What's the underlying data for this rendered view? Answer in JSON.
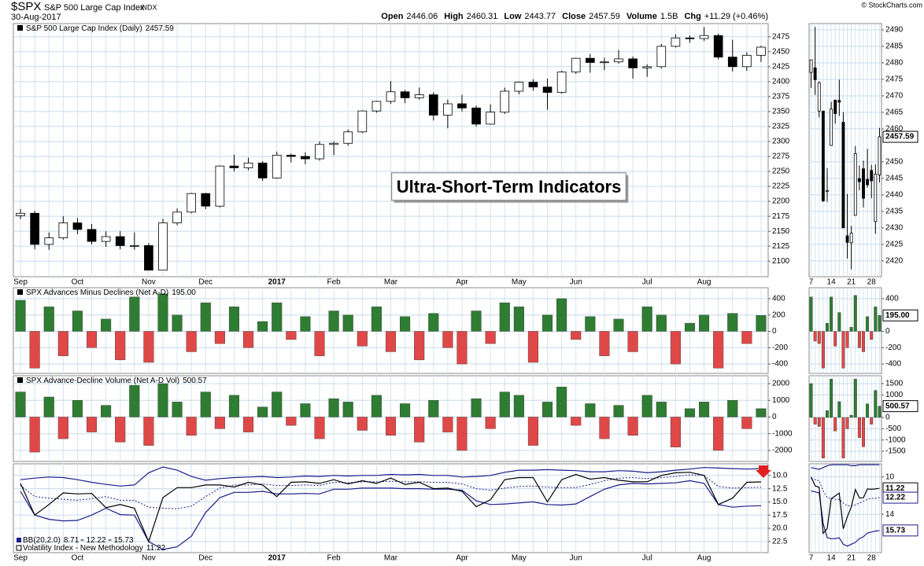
{
  "header": {
    "symbol": "$SPX",
    "name": "S&P 500 Large Cap Index",
    "exchange": "INDX",
    "date": "30-Aug-2017",
    "quote": [
      {
        "label": "Open",
        "value": "2446.06"
      },
      {
        "label": "High",
        "value": "2460.31"
      },
      {
        "label": "Low",
        "value": "2443.77"
      },
      {
        "label": "Close",
        "value": "2457.59"
      },
      {
        "label": "Volume",
        "value": "1.5B"
      },
      {
        "label": "Chg",
        "value": "+11.29 (+0.46%)"
      }
    ],
    "credit": "© StockCharts.com"
  },
  "chart_data": [
    {
      "type": "candlestick",
      "name": "S&P 500 Large Cap Index (Daily)",
      "annotation": "Ultra-Short-Term Indicators",
      "up_color": "#ffffff",
      "down_color": "#000000",
      "grid": true,
      "categories": [
        "Sep",
        null,
        null,
        null,
        "Oct",
        null,
        null,
        null,
        null,
        "Nov",
        null,
        null,
        null,
        "Dec",
        null,
        null,
        null,
        null,
        "2017",
        null,
        null,
        null,
        "Feb",
        null,
        null,
        null,
        "Mar",
        null,
        null,
        null,
        null,
        "Apr",
        null,
        null,
        null,
        "May",
        null,
        null,
        null,
        "Jun",
        null,
        null,
        null,
        null,
        "Jul",
        null,
        null,
        null,
        "Aug",
        null,
        null,
        null,
        null
      ],
      "open": [
        2176,
        2180,
        2128,
        2139,
        2164,
        2153,
        2133,
        2141,
        2126,
        2126,
        2085,
        2164,
        2182,
        2213,
        2192,
        2259,
        2256,
        2264,
        2239,
        2277,
        2275,
        2271,
        2295,
        2297,
        2316,
        2351,
        2367,
        2383,
        2373,
        2378,
        2344,
        2363,
        2356,
        2329,
        2349,
        2384,
        2399,
        2391,
        2382,
        2416,
        2439,
        2432,
        2433,
        2438,
        2423,
        2425,
        2459,
        2473,
        2472,
        2477,
        2441,
        2425,
        2444
      ],
      "high": [
        2187,
        2184,
        2148,
        2175,
        2172,
        2162,
        2150,
        2150,
        2148,
        2130,
        2171,
        2188,
        2214,
        2214,
        2260,
        2278,
        2273,
        2267,
        2283,
        2280,
        2282,
        2300,
        2300,
        2320,
        2352,
        2368,
        2401,
        2386,
        2390,
        2382,
        2370,
        2378,
        2360,
        2362,
        2390,
        2400,
        2404,
        2405,
        2418,
        2440,
        2446,
        2440,
        2453,
        2442,
        2429,
        2463,
        2479,
        2477,
        2491,
        2480,
        2470,
        2449,
        2460
      ],
      "low": [
        2170,
        2120,
        2119,
        2136,
        2145,
        2128,
        2124,
        2120,
        2119,
        2084,
        2085,
        2160,
        2180,
        2187,
        2190,
        2250,
        2252,
        2234,
        2238,
        2265,
        2262,
        2268,
        2277,
        2293,
        2314,
        2348,
        2363,
        2364,
        2370,
        2335,
        2322,
        2350,
        2325,
        2328,
        2346,
        2379,
        2385,
        2353,
        2380,
        2413,
        2415,
        2419,
        2430,
        2405,
        2408,
        2422,
        2457,
        2465,
        2468,
        2437,
        2417,
        2418,
        2433
      ],
      "close": [
        2180,
        2128,
        2139,
        2164,
        2153,
        2133,
        2141,
        2126,
        2126,
        2085,
        2164,
        2182,
        2213,
        2192,
        2259,
        2256,
        2264,
        2239,
        2277,
        2275,
        2271,
        2295,
        2297,
        2316,
        2351,
        2367,
        2383,
        2373,
        2378,
        2344,
        2363,
        2356,
        2329,
        2349,
        2384,
        2399,
        2391,
        2382,
        2416,
        2439,
        2432,
        2433,
        2438,
        2423,
        2425,
        2459,
        2473,
        2472,
        2477,
        2441,
        2425,
        2444,
        2457.59
      ],
      "ylim": [
        2074,
        2497
      ],
      "yticks": [
        2100,
        2125,
        2150,
        2175,
        2200,
        2225,
        2250,
        2275,
        2300,
        2325,
        2350,
        2375,
        2400,
        2425,
        2450,
        2475
      ]
    },
    {
      "type": "bar",
      "name": "SPX Advances Minus Declines (Net A-D)",
      "up_color": "#2e7d32",
      "down_color": "#e04848",
      "grid": true,
      "values": [
        380,
        -450,
        300,
        -300,
        250,
        -200,
        150,
        -350,
        420,
        -380,
        460,
        200,
        -250,
        350,
        -150,
        300,
        -200,
        120,
        350,
        -100,
        180,
        -300,
        250,
        200,
        -180,
        300,
        -250,
        180,
        -350,
        220,
        -200,
        -400,
        250,
        -150,
        350,
        300,
        -380,
        200,
        400,
        -100,
        180,
        -300,
        150,
        -250,
        300,
        200,
        -400,
        100,
        200,
        -450,
        220,
        -150,
        195
      ],
      "value_labels": [
        null,
        null,
        null,
        null,
        null,
        null,
        null,
        null,
        null,
        null,
        null,
        null,
        null,
        null,
        null,
        null,
        null,
        null,
        null,
        null,
        null,
        null,
        null,
        null,
        null,
        null,
        null,
        null,
        null,
        null,
        null,
        null,
        null,
        null,
        null,
        null,
        null,
        null,
        null,
        null,
        null,
        null,
        null,
        null,
        null,
        null,
        null,
        null,
        null,
        null,
        null,
        null,
        "195.00"
      ],
      "ylim": [
        -515,
        534
      ],
      "yticks": [
        400,
        200,
        0,
        -200,
        -400
      ]
    },
    {
      "type": "bar",
      "name": "SPX Advance-Decline Volume (Net A-D Vol)",
      "up_color": "#2e7d32",
      "down_color": "#e04848",
      "grid": true,
      "values": [
        1500,
        -2100,
        1200,
        -1300,
        1000,
        -900,
        700,
        -1500,
        1900,
        -1700,
        2000,
        900,
        -1100,
        1500,
        -700,
        1300,
        -900,
        600,
        1500,
        -500,
        800,
        -1300,
        1100,
        900,
        -800,
        1300,
        -1100,
        800,
        -1500,
        1000,
        -900,
        -2000,
        1100,
        -700,
        1500,
        1300,
        -1700,
        900,
        1800,
        -500,
        800,
        -1300,
        700,
        -1100,
        1300,
        900,
        -1800,
        500,
        900,
        -2000,
        1000,
        -700,
        500.57
      ],
      "ylim": [
        -2660,
        2470
      ],
      "yticks": [
        2000,
        1000,
        0,
        -1000,
        -2000
      ]
    },
    {
      "type": "line",
      "inverted": true,
      "grid": true,
      "categories": [
        "Sep",
        null,
        null,
        null,
        "Oct",
        null,
        null,
        null,
        null,
        "Nov",
        null,
        null,
        null,
        "Dec",
        null,
        null,
        null,
        null,
        "2017",
        null,
        null,
        null,
        "Feb",
        null,
        null,
        null,
        "Mar",
        null,
        null,
        null,
        null,
        "Apr",
        null,
        null,
        null,
        "May",
        null,
        null,
        null,
        "Jun",
        null,
        null,
        null,
        null,
        "Jul",
        null,
        null,
        null,
        "Aug",
        null,
        null,
        null,
        null
      ],
      "series": [
        {
          "name": "Volatility Index - New Methodology",
          "color": "#000000",
          "values": [
            11.5,
            17.5,
            15.5,
            13.3,
            13.5,
            13.4,
            16.1,
            15.5,
            16.2,
            22.5,
            14.2,
            12.3,
            12.3,
            11.8,
            11.8,
            12.2,
            11.3,
            11.8,
            14.0,
            11.3,
            11.2,
            11.5,
            10.8,
            11.6,
            11.0,
            11.5,
            10.5,
            11.7,
            11.3,
            12.5,
            12.4,
            13.0,
            15.9,
            14.6,
            10.8,
            10.4,
            10.4,
            15.0,
            10.8,
            9.8,
            10.7,
            10.4,
            10.9,
            11.2,
            11.2,
            10.0,
            9.5,
            9.4,
            10.0,
            15.5,
            14.3,
            11.3,
            11.22
          ]
        }
      ],
      "bands": {
        "name": "BB(20,2.0)",
        "color": "#1c1c8c",
        "lower": [
          10.8,
          10.5,
          10.3,
          10.4,
          10.8,
          11.3,
          11.7,
          12.0,
          11.8,
          9.5,
          8.4,
          9.0,
          10.2,
          10.9,
          10.6,
          10.4,
          10.3,
          10.2,
          10.4,
          10.3,
          10.1,
          10.2,
          10.0,
          10.1,
          10.0,
          10.0,
          9.8,
          9.9,
          9.8,
          10.0,
          10.0,
          10.3,
          10.2,
          10.0,
          9.4,
          9.0,
          9.0,
          8.9,
          9.0,
          9.1,
          9.3,
          9.3,
          9.1,
          9.2,
          9.5,
          9.3,
          9.0,
          8.8,
          8.5,
          8.6,
          8.7,
          8.8,
          8.71
        ],
        "middle": [
          11.9,
          14.0,
          14.3,
          14.5,
          14.7,
          14.4,
          14.0,
          14.7,
          14.7,
          16.0,
          16.2,
          16.3,
          15.8,
          14.0,
          12.4,
          11.8,
          11.8,
          11.6,
          11.9,
          11.9,
          11.8,
          11.9,
          11.3,
          11.4,
          11.2,
          11.2,
          11.1,
          11.2,
          11.2,
          11.3,
          11.3,
          11.6,
          12.5,
          12.8,
          12.4,
          12.1,
          12.0,
          12.2,
          12.3,
          12.3,
          11.7,
          11.0,
          10.5,
          10.4,
          10.6,
          10.4,
          10.2,
          9.9,
          10.0,
          12.1,
          12.4,
          12.3,
          12.22
        ],
        "upper": [
          13.0,
          17.5,
          18.3,
          18.6,
          18.5,
          17.5,
          16.2,
          17.4,
          17.5,
          22.5,
          24.0,
          23.5,
          21.5,
          17.0,
          14.2,
          13.2,
          13.2,
          13.0,
          13.5,
          13.5,
          13.4,
          13.5,
          12.6,
          12.6,
          12.4,
          12.4,
          12.4,
          12.5,
          12.5,
          12.6,
          12.6,
          12.8,
          14.8,
          15.5,
          15.4,
          15.2,
          15.0,
          15.5,
          15.6,
          15.4,
          14.0,
          12.6,
          11.8,
          11.5,
          11.6,
          11.5,
          11.4,
          11.0,
          11.5,
          15.5,
          16.0,
          15.8,
          15.73
        ]
      },
      "ylim": [
        7.8,
        24.6
      ],
      "yticks": [
        {
          "value": 10,
          "label": "10.0"
        },
        {
          "value": 12.5,
          "label": "12.5"
        },
        {
          "value": 15,
          "label": "15.0"
        },
        {
          "value": 17.5,
          "label": "17.5"
        },
        {
          "value": 20,
          "label": "20.0"
        },
        22.5
      ]
    },
    {
      "type": "candlestick",
      "up_color": "#ffffff",
      "down_color": "#000000",
      "grid": true,
      "last_value_tag": true,
      "categories": [
        "7",
        null,
        null,
        null,
        null,
        "14",
        null,
        null,
        null,
        null,
        "21",
        null,
        null,
        null,
        null,
        "28",
        null,
        null
      ],
      "open": [
        2477.1,
        2478.5,
        2465.4,
        2465.4,
        2441.0,
        2454.96,
        2468.7,
        2468.6,
        2462.0,
        2427.6,
        2425.5,
        2433.8,
        2444.9,
        2447.9,
        2444.7,
        2447.4,
        2431.9,
        2446.06
      ],
      "high": [
        2480.9,
        2490.9,
        2474.4,
        2465.4,
        2448.1,
        2468.2,
        2468.9,
        2474.9,
        2465.0,
        2440.3,
        2430.6,
        2454.8,
        2448.9,
        2450.4,
        2453.96,
        2449.1,
        2449.2,
        2460.31
      ],
      "low": [
        2472.4,
        2470.3,
        2463.5,
        2437.8,
        2437.9,
        2454.96,
        2461.6,
        2463.9,
        2430.0,
        2420.7,
        2417.4,
        2433.7,
        2441.4,
        2436.2,
        2442.2,
        2439.0,
        2428.2,
        2443.77
      ],
      "close": [
        2480.9,
        2474.9,
        2474.0,
        2438.2,
        2441.3,
        2466.0,
        2464.6,
        2468.1,
        2430.0,
        2425.6,
        2428.4,
        2452.5,
        2444.0,
        2438.97,
        2443.05,
        2444.24,
        2446.3,
        2457.59
      ],
      "ylim": [
        2415.2,
        2491.9
      ],
      "yticks": [
        2420,
        2425,
        2430,
        2435,
        2440,
        2445,
        2450,
        2460,
        2465,
        2470,
        2475,
        2480,
        2485,
        2490
      ]
    },
    {
      "type": "bar",
      "up_color": "#2e7d32",
      "down_color": "#e04848",
      "grid": true,
      "last_value_tag": true,
      "values": [
        420,
        -120,
        -150,
        -450,
        100,
        420,
        -180,
        230,
        -450,
        -200,
        50,
        440,
        -200,
        -250,
        180,
        -100,
        300,
        195
      ],
      "value_labels": [
        null,
        null,
        null,
        null,
        null,
        null,
        null,
        null,
        null,
        null,
        null,
        null,
        null,
        null,
        null,
        null,
        null,
        "195.00"
      ],
      "ylim": [
        -515,
        534
      ],
      "yticks": [
        400,
        0,
        -200,
        -400
      ]
    },
    {
      "type": "bar",
      "up_color": "#2e7d32",
      "down_color": "#e04848",
      "grid": true,
      "last_value_tag": true,
      "values": [
        1500,
        -300,
        -400,
        -1800,
        300,
        1700,
        -600,
        700,
        -1800,
        -500,
        100,
        1700,
        -900,
        -1300,
        600,
        -300,
        1200,
        500.57
      ],
      "ylim": [
        -1951,
        1847
      ],
      "yticks": [
        1500,
        1000,
        0,
        -500,
        -1000,
        -1500
      ]
    },
    {
      "type": "line",
      "inverted": true,
      "grid": true,
      "last_value_tag": true,
      "categories": [
        "7",
        null,
        null,
        null,
        null,
        "14",
        null,
        null,
        null,
        null,
        "21",
        null,
        null,
        null,
        null,
        "28",
        null,
        null
      ],
      "series": [
        {
          "color": "#000000",
          "values": [
            10.0,
            10.96,
            11.11,
            16.04,
            15.51,
            12.33,
            12.04,
            11.74,
            15.55,
            14.26,
            13.19,
            11.35,
            12.25,
            12.23,
            11.28,
            11.32,
            11.28,
            11.22
          ]
        }
      ],
      "bands": {
        "color": "#1c1c8c",
        "lower": [
          9.0,
          9.1,
          9.2,
          9.0,
          8.8,
          8.7,
          8.7,
          8.7,
          8.7,
          8.7,
          8.8,
          8.8,
          8.7,
          8.7,
          8.7,
          8.7,
          8.7,
          8.71
        ],
        "middle": [
          10.2,
          10.3,
          10.4,
          11.5,
          12.2,
          12.3,
          12.4,
          12.4,
          12.8,
          13.1,
          13.1,
          13.0,
          12.8,
          12.6,
          12.4,
          12.3,
          12.3,
          12.22
        ],
        "upper": [
          11.5,
          11.6,
          11.7,
          15.0,
          16.5,
          16.6,
          16.6,
          16.5,
          17.2,
          17.4,
          17.2,
          17.0,
          16.6,
          16.4,
          16.0,
          15.9,
          15.8,
          15.73
        ]
      },
      "ylim": [
        8.6,
        18.1
      ],
      "yticks": [
        10,
        14
      ]
    }
  ]
}
